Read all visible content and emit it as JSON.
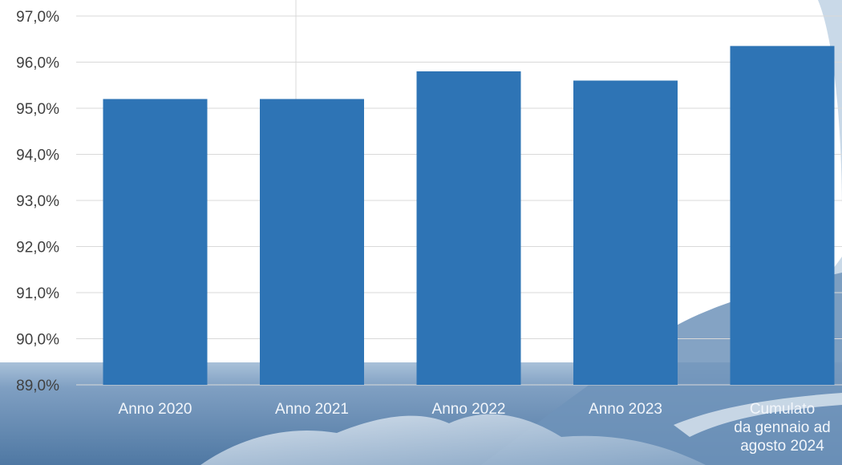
{
  "chart_data": {
    "type": "bar",
    "categories": [
      [
        "Anno 2020"
      ],
      [
        "Anno 2021"
      ],
      [
        "Anno 2022"
      ],
      [
        "Anno 2023"
      ],
      [
        "Cumulato",
        "da gennaio ad",
        "agosto 2024"
      ]
    ],
    "values": [
      95.2,
      95.2,
      95.8,
      95.6,
      96.35
    ],
    "ylim": [
      89,
      97
    ],
    "y_ticks": [
      "89,0%",
      "90,0%",
      "91,0%",
      "92,0%",
      "93,0%",
      "94,0%",
      "95,0%",
      "96,0%",
      "97,0%"
    ],
    "grid": true,
    "title": "",
    "xlabel": "",
    "ylabel": "",
    "colors": {
      "bar": "#2e74b5",
      "background_photo_sea": "#5b84ae",
      "background_photo_light": "#b8cde0",
      "background_arc": "#c9d9e8"
    }
  }
}
